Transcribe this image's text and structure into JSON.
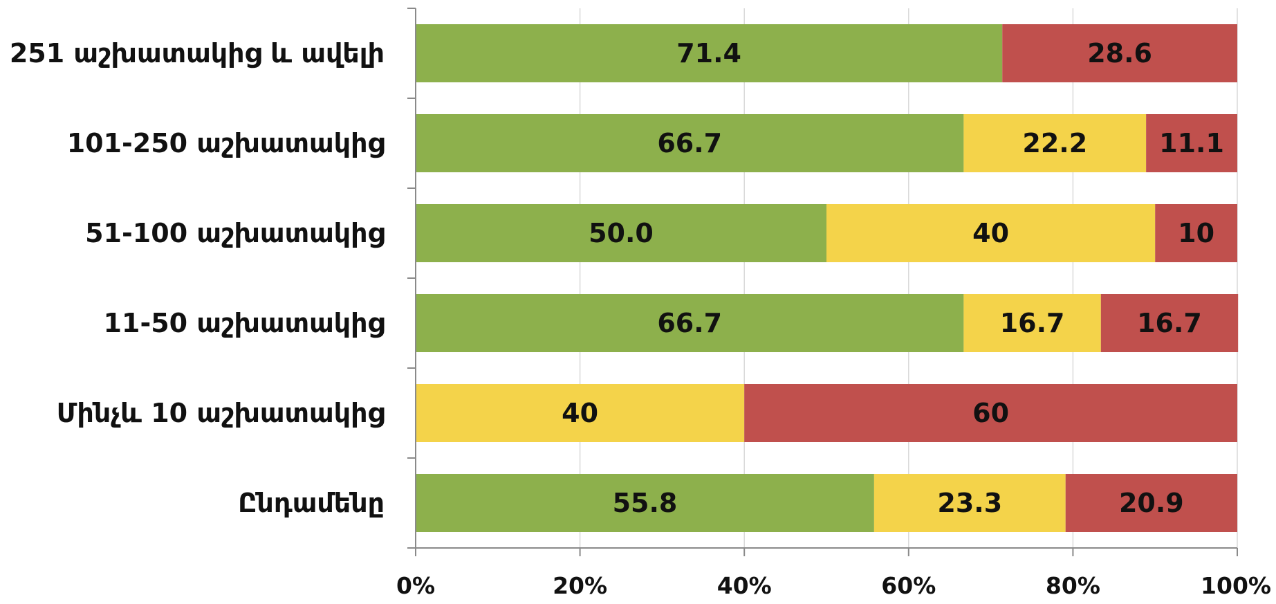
{
  "chart_data": {
    "type": "bar",
    "orientation": "horizontal",
    "stacked": "percent",
    "categories": [
      "251 աշխատակից և ավելի",
      "101-250 աշխատակից",
      "51-100 աշխատակից",
      "11-50 աշխատակից",
      "Մինչև 10 աշխատակից",
      "Ընդամենը"
    ],
    "series": [
      {
        "color": "#8DB04C",
        "values": [
          71.4,
          66.7,
          50.0,
          66.7,
          0,
          55.8
        ],
        "labels": [
          "71.4",
          "66.7",
          "50.0",
          "66.7",
          "",
          "55.8"
        ]
      },
      {
        "color": "#F4D34A",
        "values": [
          0,
          22.2,
          40,
          16.7,
          40,
          23.3
        ],
        "labels": [
          "",
          "22.2",
          "40",
          "16.7",
          "40",
          "23.3"
        ]
      },
      {
        "color": "#C0504D",
        "values": [
          28.6,
          11.1,
          10,
          16.7,
          60,
          20.9
        ],
        "labels": [
          "28.6",
          "11.1",
          "10",
          "16.7",
          "60",
          "20.9"
        ]
      }
    ],
    "xlim": [
      0,
      100
    ],
    "x_ticks": [
      "0%",
      "20%",
      "40%",
      "60%",
      "80%",
      "100%"
    ],
    "grid": true,
    "legend": "none"
  }
}
